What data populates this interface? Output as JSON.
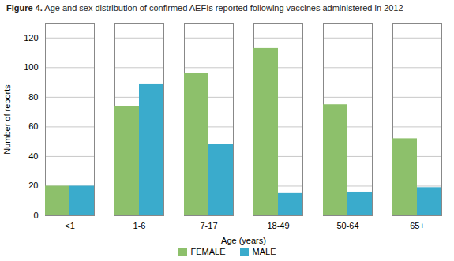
{
  "chart_data": {
    "type": "bar",
    "title": "Figure 4.",
    "subtitle": "Age and sex distribution of confirmed AEFIs reported following vaccines administered in 2012",
    "categories": [
      "<1",
      "1-6",
      "7-17",
      "18-49",
      "50-64",
      "65+"
    ],
    "series": [
      {
        "name": "FEMALE",
        "color": "#8dc06b",
        "values": [
          20,
          74,
          96,
          113,
          75,
          52
        ]
      },
      {
        "name": "MALE",
        "color": "#3aabcc",
        "values": [
          20,
          89,
          48,
          15,
          16,
          19
        ]
      }
    ],
    "xlabel": "Age (years)",
    "ylabel": "Number of reports",
    "ylim": [
      0,
      130
    ],
    "yticks": [
      0,
      20,
      40,
      60,
      80,
      100,
      120
    ],
    "grid": true,
    "legend": "bottom"
  }
}
